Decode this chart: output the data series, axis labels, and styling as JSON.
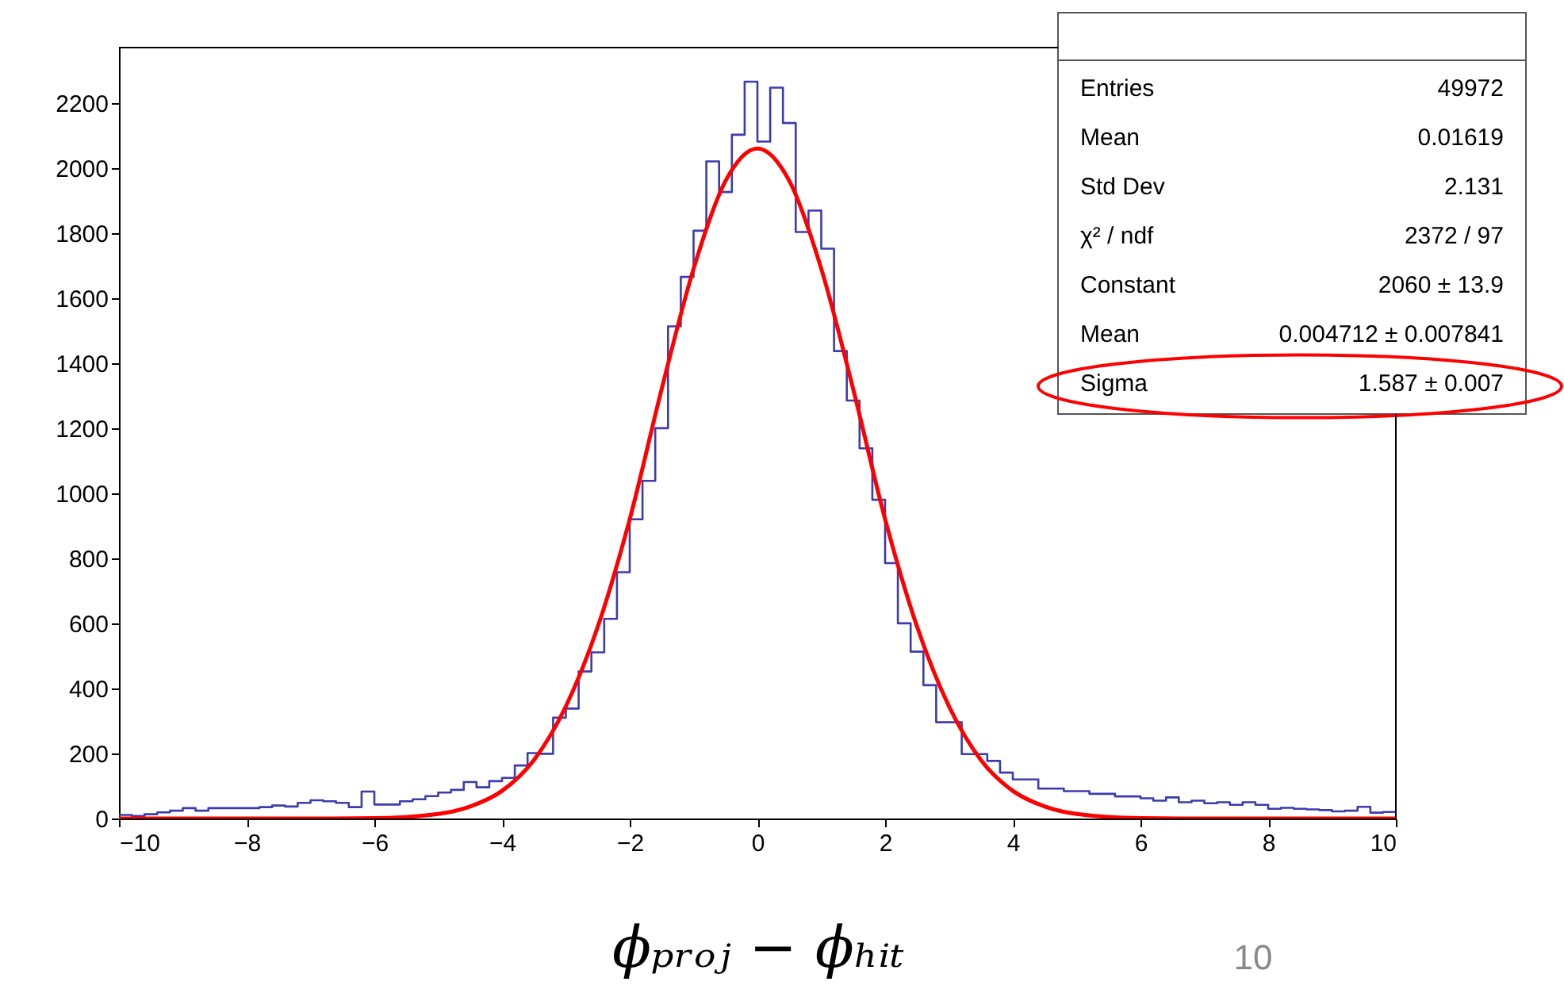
{
  "chart_data": {
    "type": "histogram",
    "xlabel": "ϕₚᵣₒⱼ − ϕₕᵢₜ",
    "color": "#3b3bb0",
    "bins": [
      -10,
      -9.8,
      -9.6,
      -9.4,
      -9.2,
      -9,
      -8.8,
      -8.6,
      -8.4,
      -8.2,
      -8,
      -7.8,
      -7.6,
      -7.4,
      -7.2,
      -7,
      -6.8,
      -6.6,
      -6.4,
      -6.2,
      -6,
      -5.8,
      -5.6,
      -5.4,
      -5.2,
      -5,
      -4.8,
      -4.6,
      -4.4,
      -4.2,
      -4,
      -3.8,
      -3.6,
      -3.4,
      -3.2,
      -3,
      -2.8,
      -2.6,
      -2.4,
      -2.2,
      -2,
      -1.8,
      -1.6,
      -1.4,
      -1.2,
      -1,
      -0.8,
      -0.6,
      -0.4,
      -0.2,
      0,
      0.2,
      0.4,
      0.6,
      0.8,
      1,
      1.2,
      1.4,
      1.6,
      1.8,
      2,
      2.2,
      2.4,
      2.6,
      2.8,
      3,
      3.2,
      3.4,
      3.6,
      3.8,
      4,
      4.2,
      4.4,
      4.6,
      4.8,
      5,
      5.2,
      5.4,
      5.6,
      5.8,
      6,
      6.2,
      6.4,
      6.6,
      6.8,
      7,
      7.2,
      7.4,
      7.6,
      7.8,
      8,
      8.2,
      8.4,
      8.6,
      8.8,
      9,
      9.2,
      9.4,
      9.6,
      9.8,
      10
    ],
    "values": [
      11,
      8,
      13,
      19,
      24,
      32,
      24,
      32,
      32,
      32,
      32,
      35,
      40,
      37,
      48,
      56,
      53,
      48,
      35,
      83,
      43,
      43,
      53,
      59,
      69,
      80,
      88,
      112,
      96,
      115,
      125,
      163,
      201,
      199,
      310,
      338,
      452,
      511,
      614,
      757,
      920,
      1038,
      1200,
      1513,
      1665,
      1807,
      2020,
      1926,
      2102,
      2265,
      2081,
      2247,
      2138,
      1803,
      1869,
      1752,
      1437,
      1285,
      1138,
      980,
      785,
      600,
      513,
      410,
      296,
      296,
      198,
      198,
      177,
      141,
      120,
      120,
      92,
      92,
      84,
      84,
      76,
      76,
      68,
      68,
      62,
      55,
      65,
      50,
      55,
      47,
      50,
      42,
      50,
      42,
      30,
      33,
      30,
      28,
      26,
      22,
      24,
      36,
      18,
      20
    ],
    "series": [
      {
        "type": "line",
        "color": "#ff0000",
        "x": [
          -10,
          -7,
          -6,
          -5,
          -4.5,
          -4,
          -3.5,
          -3,
          -2.5,
          -2,
          -1.5,
          -1,
          -0.5,
          0,
          0.5,
          1,
          1.5,
          2,
          2.5,
          3,
          3.5,
          4,
          4.5,
          5,
          6,
          7,
          10
        ],
        "values": [
          0,
          0,
          1,
          14,
          37,
          85,
          180,
          345,
          590,
          920,
          1320,
          1690,
          1960,
          2060,
          1960,
          1690,
          1320,
          920,
          590,
          345,
          180,
          85,
          37,
          14,
          1,
          0,
          0
        ]
      }
    ],
    "xlim": [
      -10,
      10
    ],
    "xticks": [
      -10,
      -8,
      -6,
      -4,
      -2,
      0,
      2,
      4,
      6,
      8,
      10
    ],
    "ylim": [
      0,
      2370
    ],
    "yticks": [
      0,
      200,
      400,
      600,
      800,
      1000,
      1200,
      1400,
      1600,
      1800,
      2000,
      2200
    ],
    "grid": false,
    "annotations": [
      "Entries",
      "49972",
      "Mean",
      "0.01619",
      "Std Dev",
      "2.131",
      "χ² / ndf",
      "2372 / 97",
      "Constant",
      "2060 ± 13.9",
      "Mean",
      "0.004712 ± 0.007841",
      "Sigma",
      "1.587 ± 0.007",
      "10"
    ]
  }
}
